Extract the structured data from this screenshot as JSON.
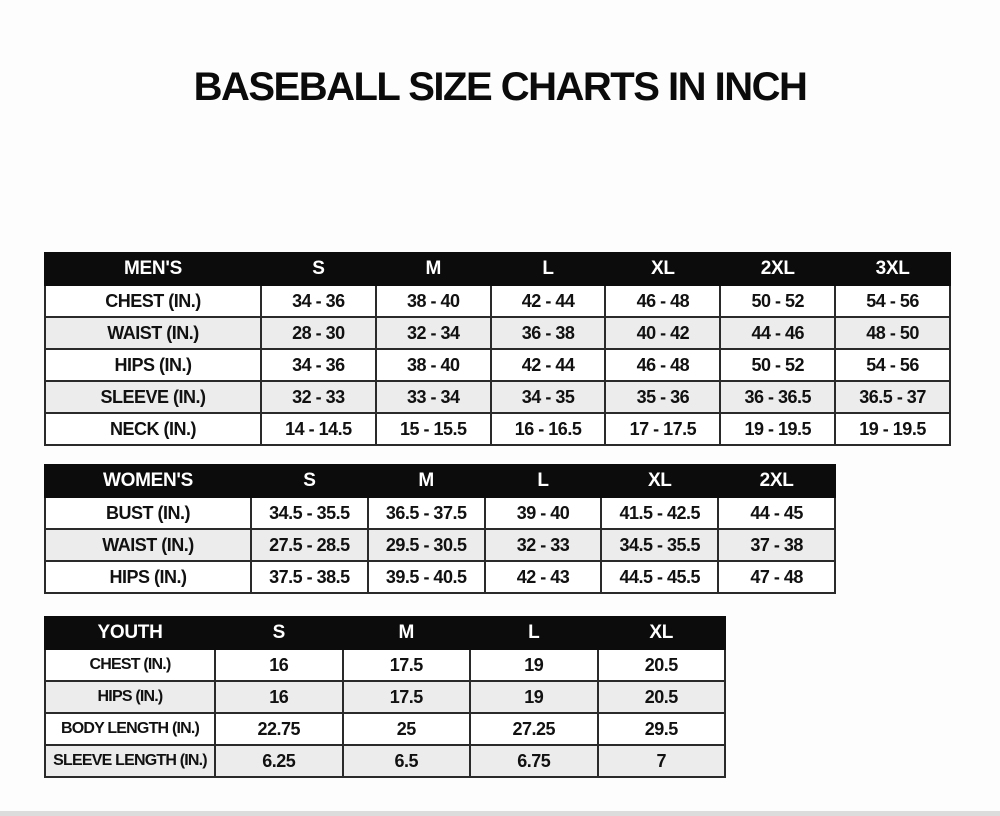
{
  "page": {
    "title": "BASEBALL SIZE CHARTS IN INCH"
  },
  "colors": {
    "header_bg": "#0c0c0c",
    "header_text": "#ffffff",
    "row_alt_bg": "#ececec",
    "grid_border": "#2a2a2a",
    "page_bg": "#fdfdfd"
  },
  "tables": [
    {
      "name": "mens",
      "header": [
        "MEN'S",
        "S",
        "M",
        "L",
        "XL",
        "2XL",
        "3XL"
      ],
      "rows": [
        [
          "CHEST (IN.)",
          "34 - 36",
          "38 - 40",
          "42 - 44",
          "46 - 48",
          "50 - 52",
          "54 - 56"
        ],
        [
          "WAIST (IN.)",
          "28 - 30",
          "32 - 34",
          "36 - 38",
          "40 - 42",
          "44 - 46",
          "48 - 50"
        ],
        [
          "HIPS (IN.)",
          "34 - 36",
          "38 - 40",
          "42 - 44",
          "46 - 48",
          "50 - 52",
          "54 - 56"
        ],
        [
          "SLEEVE (IN.)",
          "32 - 33",
          "33 - 34",
          "34 - 35",
          "35 - 36",
          "36 - 36.5",
          "36.5 - 37"
        ],
        [
          "NECK (IN.)",
          "14 - 14.5",
          "15 - 15.5",
          "16 - 16.5",
          "17 - 17.5",
          "19 - 19.5",
          "19 - 19.5"
        ]
      ]
    },
    {
      "name": "womens",
      "header": [
        "WOMEN'S",
        "S",
        "M",
        "L",
        "XL",
        "2XL"
      ],
      "rows": [
        [
          "BUST (IN.)",
          "34.5 - 35.5",
          "36.5 - 37.5",
          "39 - 40",
          "41.5 - 42.5",
          "44 - 45"
        ],
        [
          "WAIST (IN.)",
          "27.5 - 28.5",
          "29.5 - 30.5",
          "32 - 33",
          "34.5 - 35.5",
          "37 - 38"
        ],
        [
          "HIPS (IN.)",
          "37.5 - 38.5",
          "39.5 - 40.5",
          "42 - 43",
          "44.5 - 45.5",
          "47 - 48"
        ]
      ]
    },
    {
      "name": "youth",
      "header": [
        "YOUTH",
        "S",
        "M",
        "L",
        "XL"
      ],
      "rows": [
        [
          "CHEST (IN.)",
          "16",
          "17.5",
          "19",
          "20.5"
        ],
        [
          "HIPS (IN.)",
          "16",
          "17.5",
          "19",
          "20.5"
        ],
        [
          "BODY LENGTH (IN.)",
          "22.75",
          "25",
          "27.25",
          "29.5"
        ],
        [
          "SLEEVE LENGTH (IN.)",
          "6.25",
          "6.5",
          "6.75",
          "7"
        ]
      ]
    }
  ]
}
